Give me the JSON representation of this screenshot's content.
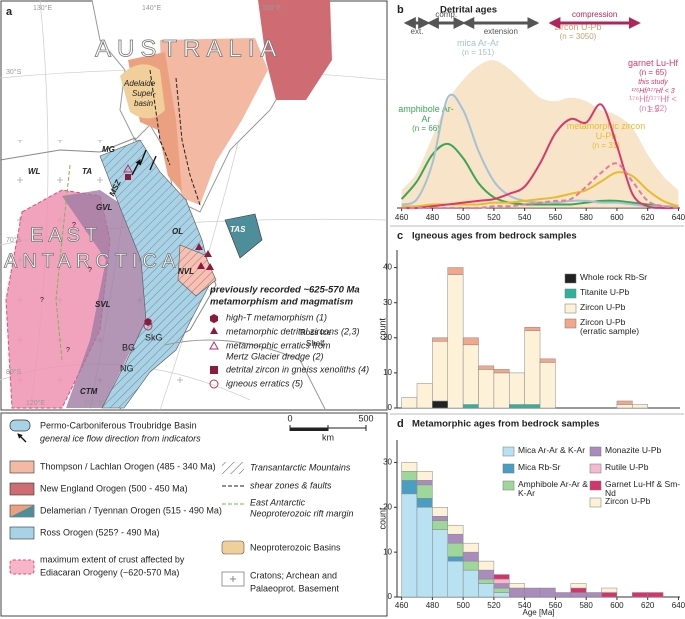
{
  "map": {
    "panel": "a",
    "graticule": [
      "130°E",
      "140°E",
      "150°E",
      "30°S",
      "70°S",
      "80°S",
      "120°E",
      "150°E"
    ],
    "regions": [
      "AUSTRALIA",
      "EAST",
      "ANTARCTICA"
    ],
    "basin": [
      "Adelaide",
      "Super-",
      "basin"
    ],
    "places": [
      "MG",
      "TA",
      "WL",
      "MSZ",
      "GVL",
      "OL",
      "TAS",
      "NVL",
      "SVL",
      "SkG",
      "BG",
      "NG",
      "CTM",
      "Ross Ice",
      "Shelf"
    ],
    "uncertain": "?",
    "symbol_legend": {
      "title": [
        "previously recorded ~625-570 Ma",
        "metamorphism and magmatism"
      ],
      "items": [
        "high-T metamorphism (1)",
        "metamorphic detrital zircons (2,3)",
        "metamorphic erratics from",
        "Mertz Glacier dredge (2)",
        "detrital zircon in gneiss xenoliths (4)",
        "igneous erratics (5)"
      ]
    },
    "legend": [
      "Permo-Carboniferous Troubridge Basin",
      "general ice flow direction from indicators",
      "Thompson / Lachlan Orogen (485 - 340 Ma)",
      "New England Orogen (500 - 450 Ma)",
      "Delamerian / Tyennan Orogen (515 - 490 Ma)",
      "Ross Orogen (525? - 490 Ma)",
      "maximum extent of crust affected by",
      "Ediacaran Orogeny (~620-570 Ma)",
      "Transantarctic Mountains",
      "shear zones & faults",
      "East Antarctic",
      "Neoproterozoic rift margin",
      "Neoproterozoic Basins",
      "Cratons; Archean and",
      "Palaeoprot. Basement"
    ],
    "scale": [
      0,
      500,
      "km"
    ]
  },
  "chart_data": [
    {
      "type": "line",
      "panel": "b",
      "title": "Detrital ages",
      "x": [
        460,
        470,
        480,
        490,
        500,
        510,
        520,
        530,
        540,
        550,
        560,
        570,
        580,
        590,
        600,
        610,
        620,
        630,
        640
      ],
      "xlim": [
        457,
        641
      ],
      "ylim": [
        0,
        1
      ],
      "xticks": [
        460,
        480,
        500,
        520,
        540,
        560,
        580,
        600,
        620,
        640
      ],
      "periods": [
        {
          "label": "ext.",
          "range": [
            463,
            477
          ],
          "color": "#555555"
        },
        {
          "label": "comp.",
          "range": [
            478,
            500
          ],
          "color": "#555555"
        },
        {
          "label": "extension",
          "range": [
            501,
            548
          ],
          "color": "#555555"
        },
        {
          "label": "compression",
          "range": [
            557,
            614
          ],
          "color": "#b3245a"
        }
      ],
      "series": [
        {
          "name": "zircon U-Pb",
          "n_label": "(n = 3050)",
          "color": "#f2c994",
          "area": true,
          "values": [
            0.1,
            0.2,
            0.4,
            0.6,
            0.72,
            0.8,
            0.83,
            0.78,
            0.7,
            0.62,
            0.6,
            0.62,
            0.6,
            0.55,
            0.52,
            0.45,
            0.3,
            0.18,
            0.1
          ]
        },
        {
          "name": "amphibole Ar-Ar",
          "n_label": "(n = 66)",
          "color": "#3aa655",
          "values": [
            0.05,
            0.15,
            0.3,
            0.36,
            0.28,
            0.14,
            0.06,
            0.03,
            0.02,
            0.02,
            0.02,
            0.02,
            0.03,
            0.04,
            0.04,
            0.03,
            0.02,
            0.01,
            0.01
          ]
        },
        {
          "name": "mica Ar-Ar",
          "n_label": "(n = 151)",
          "color": "#a3c2d4",
          "values": [
            0.02,
            0.05,
            0.25,
            0.62,
            0.55,
            0.32,
            0.15,
            0.07,
            0.04,
            0.03,
            0.03,
            0.04,
            0.04,
            0.03,
            0.03,
            0.02,
            0.01,
            0.01,
            0.01
          ]
        },
        {
          "name": "metamorphic zircon U-Pb",
          "n_label": "(n = 31)",
          "color": "#e5bd2e",
          "values": [
            0.01,
            0.01,
            0.02,
            0.02,
            0.02,
            0.02,
            0.03,
            0.03,
            0.04,
            0.05,
            0.06,
            0.08,
            0.1,
            0.15,
            0.2,
            0.18,
            0.1,
            0.04,
            0.01
          ]
        },
        {
          "name": "garnet Lu-Hf",
          "n_label": "(n = 65)",
          "note": [
            "this study",
            "¹⁷⁶Hf/¹⁷⁷Hf < 3"
          ],
          "color": "#d6396a",
          "values": [
            0,
            0,
            0.01,
            0.02,
            0.03,
            0.04,
            0.05,
            0.08,
            0.12,
            0.25,
            0.42,
            0.5,
            0.48,
            0.58,
            0.35,
            0.08,
            0.01,
            0,
            0
          ]
        },
        {
          "name": "¹⁷⁶Hf/¹⁷⁷Hf < 1.5",
          "n_label": "(n = 22)",
          "color": "#e87a9a",
          "dashed": true,
          "values": [
            0,
            0,
            0,
            0,
            0,
            0,
            0.01,
            0.01,
            0.02,
            0.03,
            0.04,
            0.05,
            0.12,
            0.2,
            0.25,
            0.15,
            0.04,
            0.01,
            0
          ]
        }
      ]
    },
    {
      "type": "histogram",
      "panel": "c",
      "title": "Igneous ages from bedrock samples",
      "ylabel": "count",
      "bins": [
        460,
        470,
        480,
        490,
        500,
        510,
        520,
        530,
        540,
        550,
        560,
        570,
        580,
        590,
        600,
        610,
        620
      ],
      "xlim": [
        457,
        641
      ],
      "ylim": [
        0,
        45
      ],
      "yticks": [
        0,
        10,
        20,
        30,
        40
      ],
      "series": [
        {
          "name": "Whole rock Rb-Sr",
          "color": "#222222",
          "values": [
            0,
            0,
            2,
            0,
            0,
            0,
            0,
            0,
            0,
            0,
            0,
            0,
            0,
            0,
            0,
            0
          ]
        },
        {
          "name": "Titanite U-Pb",
          "color": "#2bb3a0",
          "values": [
            0,
            0,
            0,
            0,
            1,
            0,
            0,
            1,
            1,
            0,
            0,
            0,
            0,
            0,
            0,
            0
          ]
        },
        {
          "name": "Zircon U-Pb",
          "color": "#fdf1d8",
          "values": [
            3,
            7,
            17,
            38,
            17,
            11,
            10,
            9,
            21,
            13,
            0,
            0,
            0,
            0,
            1,
            1
          ]
        },
        {
          "name": "Zircon U-Pb",
          "note": "(erratic sample)",
          "color": "#f2a68a",
          "values": [
            0,
            0,
            1,
            2,
            2,
            1,
            1,
            0,
            1,
            1,
            0,
            0,
            0,
            0,
            1,
            0
          ]
        }
      ]
    },
    {
      "type": "histogram",
      "panel": "d",
      "title": "Metamorphic ages from bedrock samples",
      "ylabel": "count",
      "xlabel": "Age [Ma]",
      "bins": [
        460,
        470,
        480,
        490,
        500,
        510,
        520,
        530,
        540,
        550,
        560,
        570,
        580,
        590,
        600,
        610,
        620,
        630
      ],
      "xlim": [
        457,
        641
      ],
      "ylim": [
        0,
        35
      ],
      "xticks": [
        460,
        480,
        500,
        520,
        540,
        560,
        580,
        600,
        620,
        640
      ],
      "yticks": [
        0,
        10,
        20,
        30
      ],
      "series": [
        {
          "name": "Mica Ar-Ar & K-Ar",
          "color": "#b8e2f2",
          "values": [
            23,
            20,
            15,
            8,
            6,
            3,
            1,
            0,
            0,
            0,
            0,
            0,
            0,
            0,
            0,
            0,
            0
          ]
        },
        {
          "name": "Mica Rb-Sr",
          "color": "#4a9ec4",
          "values": [
            3,
            2,
            0,
            1,
            0,
            0,
            0,
            0,
            0,
            0,
            0,
            0,
            0,
            0,
            0,
            0,
            0
          ]
        },
        {
          "name": "Amphibole Ar-Ar & K-Ar",
          "color": "#9fd79a",
          "values": [
            2,
            3,
            2,
            3,
            2,
            1,
            1,
            0,
            0,
            0,
            0,
            0,
            0,
            0,
            0,
            0,
            0
          ]
        },
        {
          "name": "Monazite U-Pb",
          "color": "#a98bbd",
          "values": [
            0,
            1,
            1,
            2,
            2,
            2,
            1,
            2,
            2,
            2,
            1,
            1,
            1,
            0,
            0,
            0,
            0
          ]
        },
        {
          "name": "Rutile U-Pb",
          "color": "#f6b9d0",
          "values": [
            0,
            0,
            0,
            0,
            0,
            0,
            1,
            0,
            0,
            0,
            0,
            0,
            0,
            0,
            0,
            0,
            0
          ]
        },
        {
          "name": "Garnet Lu-Hf & Sm-Nd",
          "color": "#d6336c",
          "values": [
            0,
            0,
            0,
            0,
            0,
            0,
            1,
            0,
            0,
            0,
            0,
            1,
            0,
            1,
            0,
            1,
            1
          ]
        },
        {
          "name": "Zircon U-Pb",
          "color": "#fdf1d8",
          "values": [
            2,
            2,
            2,
            2,
            2,
            2,
            0,
            1,
            0,
            0,
            0,
            1,
            0,
            1,
            0,
            0,
            0
          ]
        }
      ]
    }
  ]
}
